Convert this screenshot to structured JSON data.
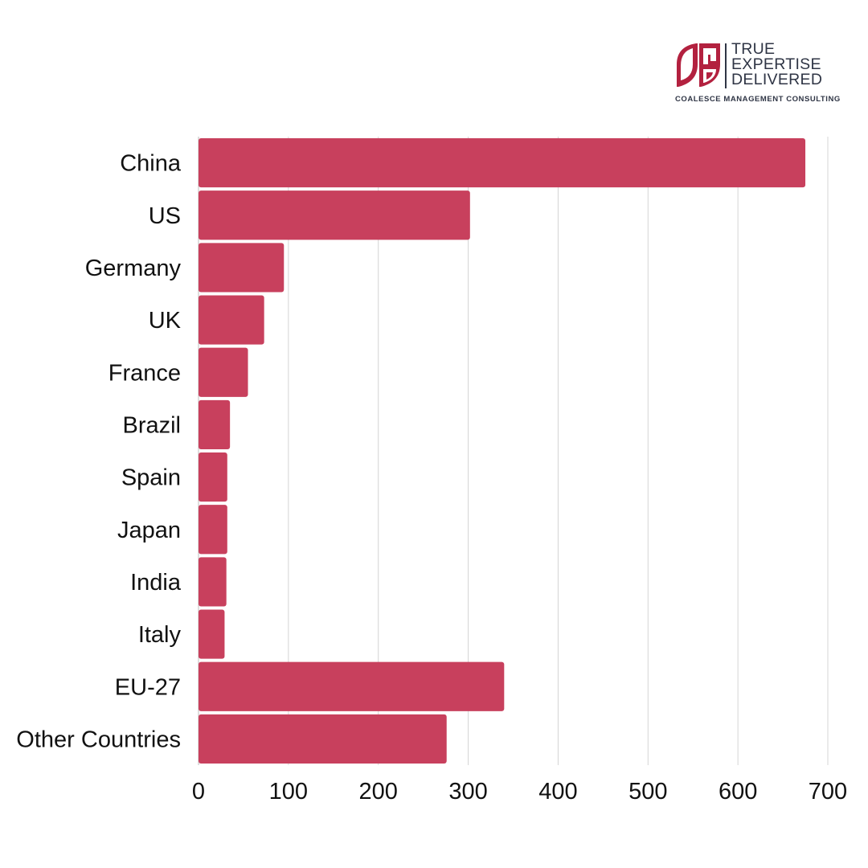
{
  "logo": {
    "tagline": [
      "TRUE",
      "EXPERTISE",
      "DELIVERED"
    ],
    "company": "COALESCE MANAGEMENT CONSULTING",
    "brand_color": "#b3213f",
    "text_color": "#2f3545"
  },
  "chart_data": {
    "type": "bar",
    "orientation": "horizontal",
    "categories": [
      "China",
      "US",
      "Germany",
      "UK",
      "France",
      "Brazil",
      "Spain",
      "Japan",
      "India",
      "Italy",
      "EU-27",
      "Other Countries"
    ],
    "values": [
      675,
      302,
      95,
      73,
      55,
      35,
      32,
      32,
      31,
      29,
      340,
      276
    ],
    "xlim": [
      0,
      700
    ],
    "xticks": [
      0,
      100,
      200,
      300,
      400,
      500,
      600,
      700
    ],
    "title": "",
    "xlabel": "",
    "ylabel": "",
    "grid": "vertical",
    "legend": "none",
    "bar_color": "#c8405d"
  }
}
